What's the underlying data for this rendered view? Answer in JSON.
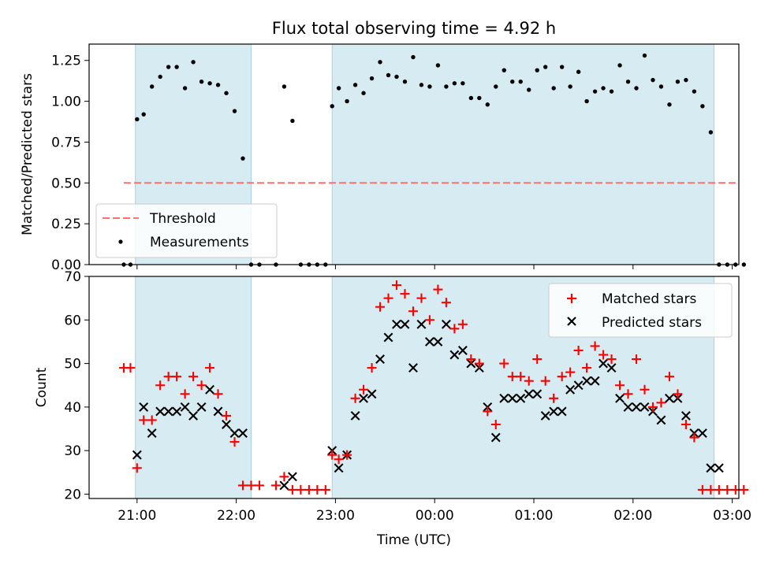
{
  "chart_data": [
    {
      "type": "scatter",
      "title": "Flux total observing time = 4.92 h",
      "ylabel": "Matched/Predicted stars",
      "xlabel": "",
      "ylim": [
        0,
        1.35
      ],
      "yticks": [
        "0.00",
        "0.25",
        "0.50",
        "0.75",
        "1.00",
        "1.25"
      ],
      "threshold": 0.5,
      "legend": {
        "placement": "lower-left",
        "entries": [
          "Threshold",
          "Measurements"
        ]
      },
      "shaded_intervals": [
        [
          "20:59",
          "22:09"
        ],
        [
          "22:58",
          "02:49"
        ]
      ],
      "series": [
        {
          "name": "Measurements",
          "color": "#000000",
          "x": [
            "20:52",
            "20:56",
            "21:00",
            "21:04",
            "21:09",
            "21:14",
            "21:19",
            "21:24",
            "21:29",
            "21:34",
            "21:39",
            "21:44",
            "21:49",
            "21:54",
            "21:59",
            "22:04",
            "22:09",
            "22:14",
            "22:24",
            "22:29",
            "22:34",
            "22:39",
            "22:44",
            "22:49",
            "22:54",
            "22:58",
            "23:02",
            "23:07",
            "23:12",
            "23:17",
            "23:22",
            "23:27",
            "23:32",
            "23:37",
            "23:42",
            "23:47",
            "23:52",
            "23:57",
            "00:02",
            "00:07",
            "00:12",
            "00:17",
            "00:22",
            "00:27",
            "00:32",
            "00:37",
            "00:42",
            "00:47",
            "00:52",
            "00:57",
            "01:02",
            "01:07",
            "01:12",
            "01:17",
            "01:22",
            "01:27",
            "01:32",
            "01:37",
            "01:42",
            "01:47",
            "01:52",
            "01:57",
            "02:02",
            "02:07",
            "02:12",
            "02:17",
            "02:22",
            "02:27",
            "02:32",
            "02:37",
            "02:42",
            "02:47",
            "02:52",
            "02:57",
            "03:02",
            "03:07"
          ],
          "y": [
            0,
            0,
            0.89,
            0.92,
            1.09,
            1.15,
            1.21,
            1.21,
            1.08,
            1.24,
            1.12,
            1.11,
            1.1,
            1.05,
            0.94,
            0.65,
            0,
            0,
            0,
            1.09,
            0.88,
            0,
            0,
            0,
            0,
            0.97,
            1.08,
            1.0,
            1.1,
            1.05,
            1.14,
            1.24,
            1.16,
            1.15,
            1.12,
            1.27,
            1.1,
            1.09,
            1.22,
            1.09,
            1.11,
            1.11,
            1.02,
            1.02,
            0.98,
            1.09,
            1.19,
            1.12,
            1.12,
            1.07,
            1.19,
            1.21,
            1.08,
            1.21,
            1.09,
            1.18,
            1.0,
            1.06,
            1.08,
            1.06,
            1.22,
            1.12,
            1.08,
            1.28,
            1.13,
            1.09,
            0.98,
            1.12,
            1.13,
            1.06,
            0.97,
            0.81,
            0,
            0,
            0,
            0
          ]
        }
      ]
    },
    {
      "type": "scatter",
      "title": "",
      "ylabel": "Count",
      "xlabel": "Time (UTC)",
      "ylim": [
        19,
        70
      ],
      "yticks": [
        "20",
        "30",
        "40",
        "50",
        "60",
        "70"
      ],
      "xticks": [
        "21:00",
        "22:00",
        "23:00",
        "00:00",
        "01:00",
        "02:00",
        "03:00"
      ],
      "legend": {
        "placement": "top-right",
        "entries": [
          "Matched stars",
          "Predicted stars"
        ]
      },
      "shaded_intervals": [
        [
          "20:59",
          "22:09"
        ],
        [
          "22:58",
          "02:49"
        ]
      ],
      "series": [
        {
          "name": "Matched stars",
          "color": "#ff0000",
          "x": [
            "20:52",
            "20:56",
            "21:00",
            "21:04",
            "21:09",
            "21:14",
            "21:19",
            "21:24",
            "21:29",
            "21:34",
            "21:39",
            "21:44",
            "21:49",
            "21:54",
            "21:59",
            "22:04",
            "22:09",
            "22:14",
            "22:24",
            "22:29",
            "22:34",
            "22:39",
            "22:44",
            "22:49",
            "22:54",
            "22:58",
            "23:02",
            "23:07",
            "23:12",
            "23:17",
            "23:22",
            "23:27",
            "23:32",
            "23:37",
            "23:42",
            "23:47",
            "23:52",
            "23:57",
            "00:02",
            "00:07",
            "00:12",
            "00:17",
            "00:22",
            "00:27",
            "00:32",
            "00:37",
            "00:42",
            "00:47",
            "00:52",
            "00:57",
            "01:02",
            "01:07",
            "01:12",
            "01:17",
            "01:22",
            "01:27",
            "01:32",
            "01:37",
            "01:42",
            "01:47",
            "01:52",
            "01:57",
            "02:02",
            "02:07",
            "02:12",
            "02:17",
            "02:22",
            "02:27",
            "02:32",
            "02:37",
            "02:42",
            "02:47",
            "02:52",
            "02:57",
            "03:02",
            "03:07"
          ],
          "y": [
            49,
            49,
            26,
            37,
            37,
            45,
            47,
            47,
            43,
            47,
            45,
            49,
            43,
            38,
            32,
            22,
            22,
            22,
            22,
            24,
            21,
            21,
            21,
            21,
            21,
            29,
            28,
            29,
            42,
            44,
            49,
            63,
            65,
            68,
            66,
            62,
            65,
            60,
            67,
            64,
            58,
            59,
            51,
            50,
            39,
            36,
            50,
            47,
            47,
            46,
            51,
            46,
            42,
            47,
            48,
            53,
            49,
            54,
            52,
            51,
            45,
            43,
            51,
            44,
            40,
            41,
            47,
            43,
            36,
            33,
            21,
            21,
            21,
            21,
            21,
            21
          ]
        },
        {
          "name": "Predicted stars",
          "color": "#000000",
          "x": [
            "21:00",
            "21:04",
            "21:09",
            "21:14",
            "21:19",
            "21:24",
            "21:29",
            "21:34",
            "21:39",
            "21:44",
            "21:49",
            "21:54",
            "21:59",
            "22:04",
            "22:29",
            "22:34",
            "22:58",
            "23:02",
            "23:07",
            "23:12",
            "23:17",
            "23:22",
            "23:27",
            "23:32",
            "23:37",
            "23:42",
            "23:47",
            "23:52",
            "23:57",
            "00:02",
            "00:07",
            "00:12",
            "00:17",
            "00:22",
            "00:27",
            "00:32",
            "00:37",
            "00:42",
            "00:47",
            "00:52",
            "00:57",
            "01:02",
            "01:07",
            "01:12",
            "01:17",
            "01:22",
            "01:27",
            "01:32",
            "01:37",
            "01:42",
            "01:47",
            "01:52",
            "01:57",
            "02:02",
            "02:07",
            "02:12",
            "02:17",
            "02:22",
            "02:27",
            "02:32",
            "02:37",
            "02:42",
            "02:47",
            "02:52"
          ],
          "y": [
            29,
            40,
            34,
            39,
            39,
            39,
            40,
            38,
            40,
            44,
            39,
            36,
            34,
            34,
            22,
            24,
            30,
            26,
            29,
            38,
            42,
            43,
            51,
            56,
            59,
            59,
            49,
            59,
            55,
            55,
            59,
            52,
            53,
            50,
            49,
            40,
            33,
            42,
            42,
            42,
            43,
            43,
            38,
            39,
            39,
            44,
            45,
            46,
            46,
            50,
            49,
            42,
            40,
            40,
            40,
            39,
            37,
            42,
            42,
            38,
            34,
            34,
            26,
            26
          ]
        }
      ]
    }
  ]
}
